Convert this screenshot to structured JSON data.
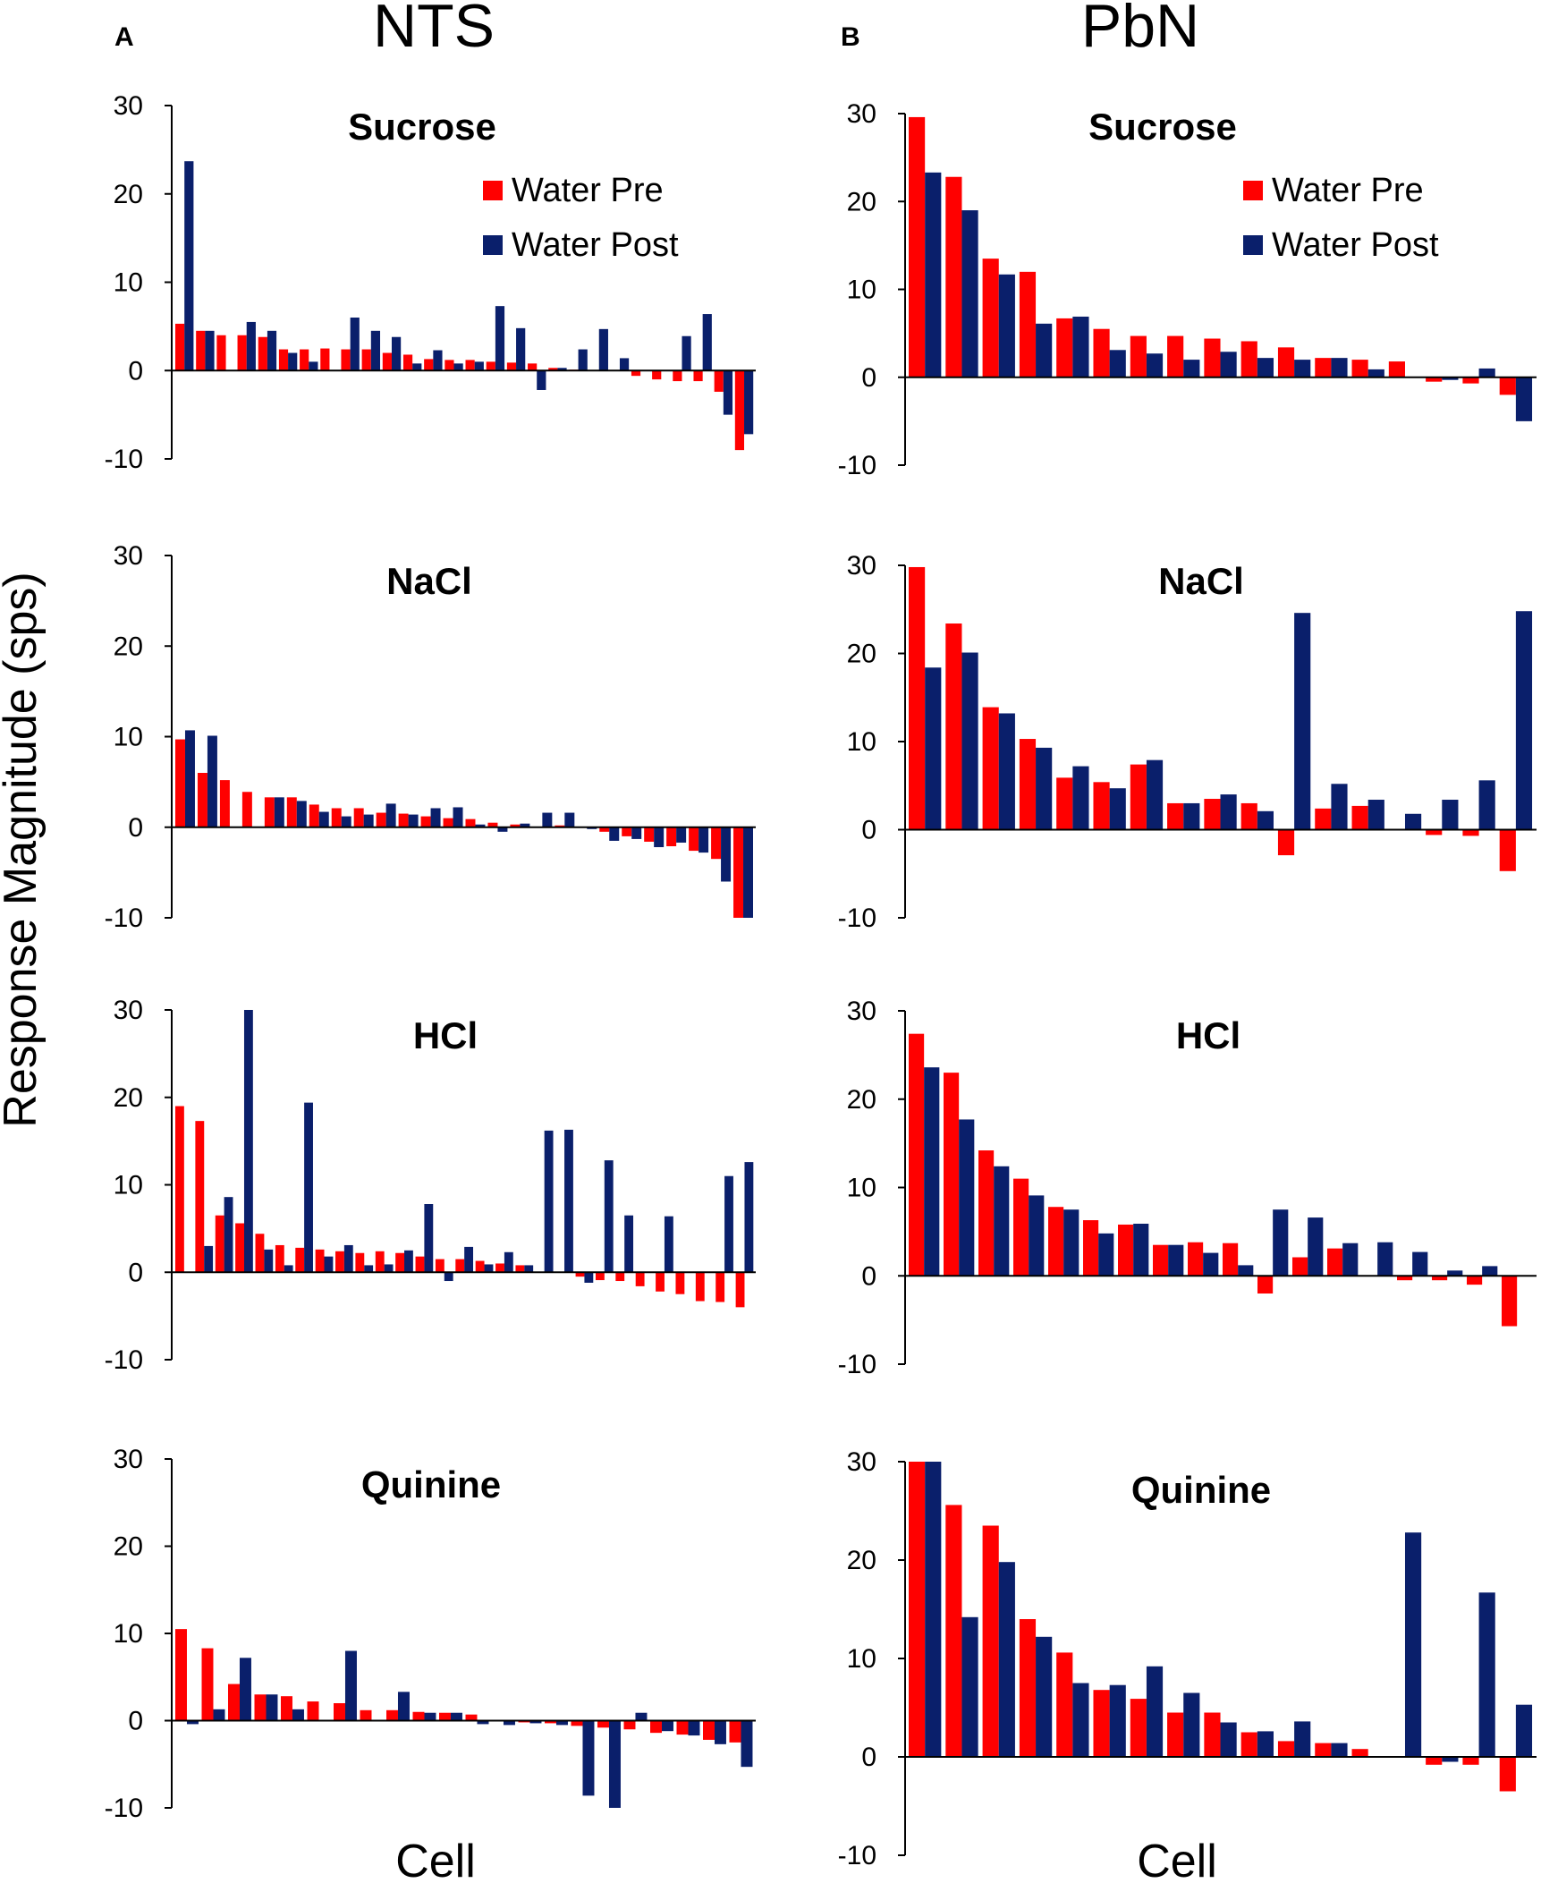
{
  "figure": {
    "ylabel": "Response Magnitude (sps)",
    "columns": [
      {
        "letter": "A",
        "title": "NTS"
      },
      {
        "letter": "B",
        "title": "PbN"
      }
    ],
    "colors": {
      "pre": "#ff0000",
      "post": "#0a1f6b"
    }
  },
  "chart_data": [
    {
      "type": "bar",
      "panel": "A",
      "region": "NTS",
      "title": "Sucrose",
      "xlabel": "Cell",
      "ylabel": "Response Magnitude (sps)",
      "ylim": [
        -10,
        30
      ],
      "yticks": [
        30,
        20,
        10,
        0,
        -10
      ],
      "grid": false,
      "legend": {
        "position": "top-right",
        "entries": [
          "Water Pre",
          "Water Post"
        ]
      },
      "series": [
        {
          "name": "Water Pre",
          "values": [
            5.3,
            4.5,
            4.0,
            4.0,
            3.8,
            2.4,
            2.4,
            2.5,
            2.4,
            2.4,
            2.0,
            1.8,
            1.3,
            1.2,
            1.2,
            1.0,
            0.9,
            0.8,
            0.3,
            0.1,
            0.0,
            0.0,
            -0.6,
            -1.0,
            -1.2,
            -1.2,
            -2.4,
            -9.0
          ]
        },
        {
          "name": "Water Post",
          "values": [
            23.7,
            4.5,
            0.0,
            5.5,
            4.5,
            2.0,
            1.0,
            0.0,
            6.0,
            4.5,
            3.8,
            0.8,
            2.3,
            0.8,
            1.0,
            7.3,
            4.8,
            -2.2,
            0.3,
            2.4,
            4.7,
            1.4,
            0.0,
            0.0,
            3.9,
            6.4,
            -5.0,
            -7.2
          ]
        }
      ]
    },
    {
      "type": "bar",
      "panel": "B",
      "region": "PbN",
      "title": "Sucrose",
      "xlabel": "Cell",
      "ylabel": "Response Magnitude (sps)",
      "ylim": [
        -10,
        30
      ],
      "yticks": [
        30,
        20,
        10,
        0,
        -10
      ],
      "grid": false,
      "legend": {
        "position": "top-right",
        "entries": [
          "Water Pre",
          "Water Post"
        ]
      },
      "series": [
        {
          "name": "Water Pre",
          "values": [
            29.6,
            22.8,
            13.5,
            12.0,
            6.7,
            5.5,
            4.7,
            4.7,
            4.4,
            4.1,
            3.4,
            2.2,
            2.0,
            1.8,
            -0.5,
            -0.7,
            -2.0
          ]
        },
        {
          "name": "Water Post",
          "values": [
            23.3,
            19.0,
            11.7,
            6.1,
            6.9,
            3.1,
            2.7,
            2.0,
            2.9,
            2.2,
            2.0,
            2.2,
            0.9,
            0.0,
            -0.3,
            1.0,
            -5.0
          ]
        }
      ]
    },
    {
      "type": "bar",
      "panel": "A",
      "region": "NTS",
      "title": "NaCl",
      "xlabel": "Cell",
      "ylabel": "Response Magnitude (sps)",
      "ylim": [
        -10,
        30
      ],
      "yticks": [
        30,
        20,
        10,
        0,
        -10
      ],
      "grid": false,
      "series": [
        {
          "name": "Water Pre",
          "values": [
            9.7,
            6.0,
            5.2,
            3.9,
            3.3,
            3.3,
            2.5,
            2.1,
            2.1,
            1.6,
            1.5,
            1.2,
            1.0,
            0.9,
            0.5,
            0.3,
            0.0,
            0.2,
            0.0,
            -0.5,
            -1.0,
            -1.6,
            -2.1,
            -2.6,
            -3.5,
            -10.0
          ]
        },
        {
          "name": "Water Post",
          "values": [
            10.7,
            10.1,
            0.0,
            0.0,
            3.3,
            2.9,
            1.7,
            1.2,
            1.4,
            2.6,
            1.4,
            2.1,
            2.2,
            0.3,
            -0.5,
            0.4,
            1.6,
            1.6,
            -0.2,
            -1.5,
            -1.3,
            -2.2,
            -1.7,
            -2.8,
            -6.0,
            -10.0
          ]
        }
      ]
    },
    {
      "type": "bar",
      "panel": "B",
      "region": "PbN",
      "title": "NaCl",
      "xlabel": "Cell",
      "ylabel": "Response Magnitude (sps)",
      "ylim": [
        -10,
        30
      ],
      "yticks": [
        30,
        20,
        10,
        0,
        -10
      ],
      "grid": false,
      "series": [
        {
          "name": "Water Pre",
          "values": [
            29.8,
            23.4,
            13.9,
            10.3,
            5.9,
            5.4,
            7.4,
            3.0,
            3.5,
            3.0,
            -2.9,
            2.4,
            2.7,
            0.0,
            -0.6,
            -0.7,
            -4.7
          ]
        },
        {
          "name": "Water Post",
          "values": [
            18.4,
            20.1,
            13.2,
            9.3,
            7.2,
            4.7,
            7.9,
            3.0,
            4.0,
            2.1,
            24.6,
            5.2,
            3.4,
            1.8,
            3.4,
            5.6,
            24.8
          ]
        }
      ]
    },
    {
      "type": "bar",
      "panel": "A",
      "region": "NTS",
      "title": "HCl",
      "xlabel": "Cell",
      "ylabel": "Response Magnitude (sps)",
      "ylim": [
        -10,
        30
      ],
      "yticks": [
        30,
        20,
        10,
        0,
        -10
      ],
      "grid": false,
      "series": [
        {
          "name": "Water Pre",
          "values": [
            19.0,
            17.3,
            6.5,
            5.6,
            4.4,
            3.1,
            2.8,
            2.6,
            2.4,
            2.2,
            2.4,
            2.2,
            1.8,
            1.5,
            1.5,
            1.3,
            1.0,
            0.8,
            0.0,
            0.0,
            -0.5,
            -0.9,
            -1.0,
            -1.6,
            -2.2,
            -2.5,
            -3.3,
            -3.4,
            -4.0
          ]
        },
        {
          "name": "Water Post",
          "values": [
            0.0,
            3.0,
            8.6,
            30.0,
            2.6,
            0.8,
            19.4,
            1.8,
            3.1,
            0.8,
            0.9,
            2.5,
            7.8,
            -1.0,
            2.9,
            0.9,
            2.3,
            0.8,
            16.2,
            16.3,
            -1.2,
            12.8,
            6.5,
            0.0,
            6.4,
            0.0,
            0.0,
            11.0,
            12.6
          ]
        }
      ]
    },
    {
      "type": "bar",
      "panel": "B",
      "region": "PbN",
      "title": "HCl",
      "xlabel": "Cell",
      "ylabel": "Response Magnitude (sps)",
      "ylim": [
        -10,
        30
      ],
      "yticks": [
        30,
        20,
        10,
        0,
        -10
      ],
      "grid": false,
      "series": [
        {
          "name": "Water Pre",
          "values": [
            27.4,
            23.0,
            14.2,
            11.0,
            7.8,
            6.3,
            5.8,
            3.5,
            3.8,
            3.7,
            -2.0,
            2.1,
            3.1,
            0.0,
            -0.5,
            -0.5,
            -1.0,
            -5.7
          ]
        },
        {
          "name": "Water Post",
          "values": [
            23.6,
            17.7,
            12.4,
            9.1,
            7.5,
            4.8,
            5.9,
            3.5,
            2.6,
            1.2,
            7.5,
            6.6,
            3.7,
            3.8,
            2.7,
            0.6,
            1.1,
            0.0
          ]
        }
      ]
    },
    {
      "type": "bar",
      "panel": "A",
      "region": "NTS",
      "title": "Quinine",
      "xlabel": "Cell",
      "ylabel": "Response Magnitude (sps)",
      "ylim": [
        -10,
        30
      ],
      "yticks": [
        30,
        20,
        10,
        0,
        -10
      ],
      "grid": false,
      "series": [
        {
          "name": "Water Pre",
          "values": [
            10.5,
            8.3,
            4.2,
            3.0,
            2.8,
            2.2,
            2.0,
            1.2,
            1.2,
            1.0,
            0.9,
            0.7,
            0.0,
            -0.2,
            -0.3,
            -0.6,
            -0.8,
            -1.0,
            -1.4,
            -1.6,
            -2.2,
            -2.5
          ]
        },
        {
          "name": "Water Post",
          "values": [
            -0.4,
            1.3,
            7.2,
            3.0,
            1.3,
            0.0,
            8.0,
            0.0,
            3.3,
            0.9,
            0.9,
            -0.4,
            -0.5,
            -0.3,
            -0.5,
            -8.6,
            -10.0,
            0.9,
            -1.2,
            -1.7,
            -2.7,
            -5.3
          ]
        }
      ]
    },
    {
      "type": "bar",
      "panel": "B",
      "region": "PbN",
      "title": "Quinine",
      "xlabel": "Cell",
      "ylabel": "Response Magnitude (sps)",
      "ylim": [
        -10,
        30
      ],
      "yticks": [
        30,
        20,
        10,
        0,
        -10
      ],
      "grid": false,
      "series": [
        {
          "name": "Water Pre",
          "values": [
            30.0,
            25.6,
            23.5,
            14.0,
            10.6,
            6.8,
            5.9,
            4.5,
            4.5,
            2.5,
            1.6,
            1.4,
            0.8,
            0.0,
            -0.8,
            -0.8,
            -3.5
          ]
        },
        {
          "name": "Water Post",
          "values": [
            30.0,
            14.2,
            19.8,
            12.2,
            7.5,
            7.3,
            9.2,
            6.5,
            3.5,
            2.6,
            3.6,
            1.4,
            0.0,
            22.8,
            -0.5,
            16.7,
            5.3
          ]
        }
      ]
    }
  ]
}
